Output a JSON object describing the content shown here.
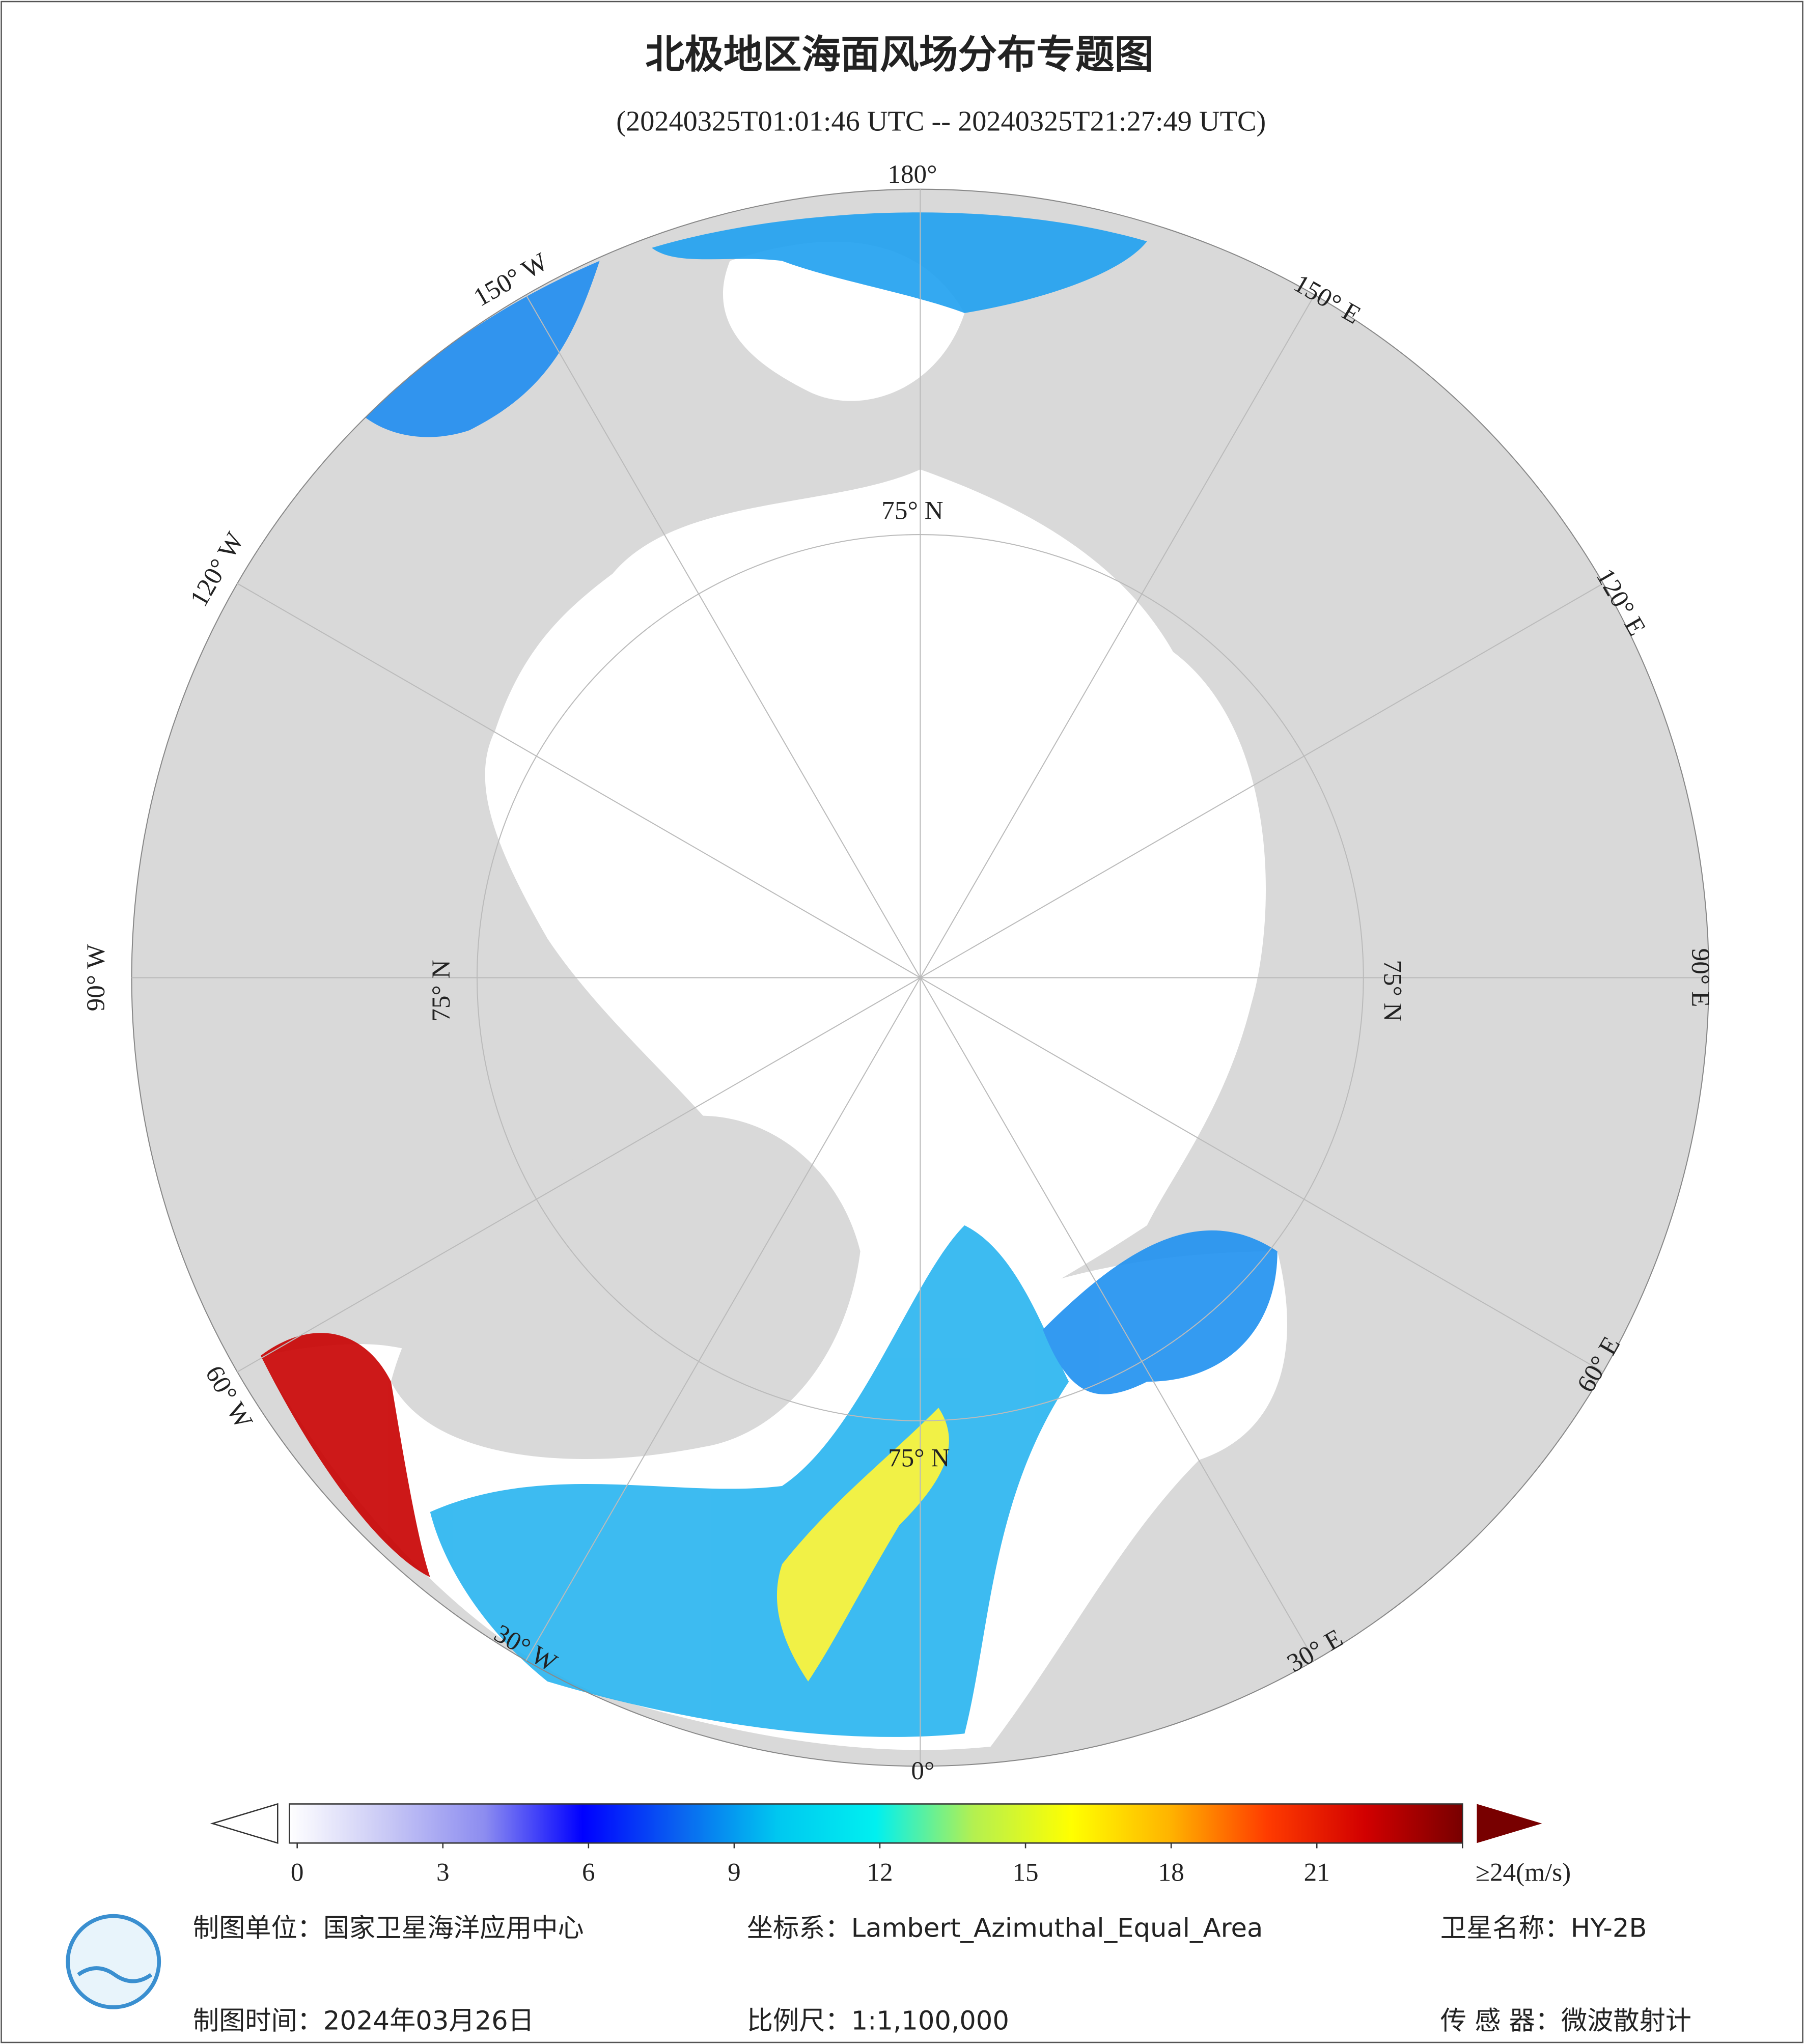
{
  "title": "北极地区海面风场分布专题图",
  "subtitle": "(20240325T01:01:46 UTC -- 20240325T21:27:49 UTC)",
  "graticule_labels": {
    "lon": [
      "180°",
      "150° W",
      "120° W",
      "90° W",
      "60° W",
      "30° W",
      "0°",
      "30° E",
      "60° E",
      "90° E",
      "120° E",
      "150° E"
    ],
    "lat": [
      "75° N",
      "75° N",
      "75° N",
      "75° N"
    ]
  },
  "colorbar": {
    "lim": [
      0,
      24
    ],
    "ticks": [
      0,
      3,
      6,
      9,
      12,
      15,
      18,
      21,
      {
        "value": 24,
        "label": "≥24(m/s)"
      }
    ],
    "colors": [
      "#ffffff",
      "#c8c8f5",
      "#8c8cf0",
      "#0000ff",
      "#0a64f0",
      "#00c8f0",
      "#00f0f0",
      "#b4f050",
      "#ffff00",
      "#ffb400",
      "#ff3c00",
      "#d20000",
      "#780000"
    ]
  },
  "footer": {
    "unit": "制图单位：国家卫星海洋应用中心",
    "crs": "坐标系：Lambert_Azimuthal_Equal_Area",
    "satellite": "卫星名称：HY-2B",
    "date": "制图时间：2024年03月26日",
    "scale": "比例尺：1:1,100,000",
    "sensor": "传 感 器：微波散射计"
  }
}
